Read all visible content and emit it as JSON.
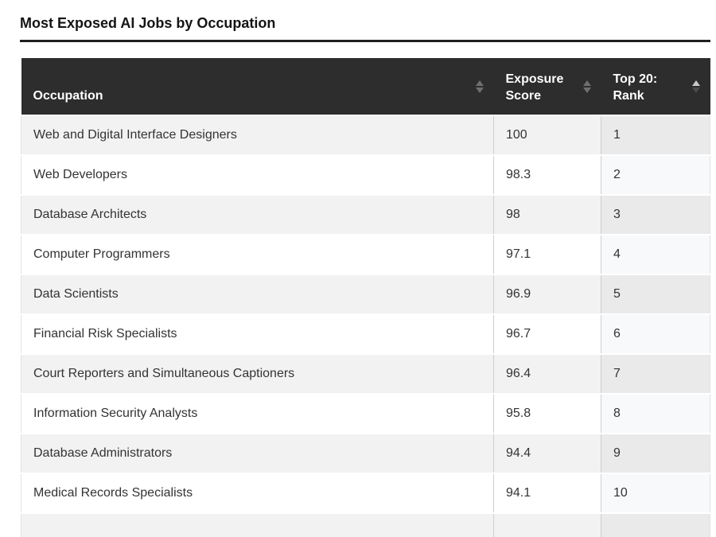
{
  "title": "Most Exposed AI Jobs by Occupation",
  "table": {
    "columns": [
      {
        "id": "occupation",
        "label": "Occupation",
        "sort": "none"
      },
      {
        "id": "score",
        "label": "Exposure Score",
        "sort": "none"
      },
      {
        "id": "rank",
        "label": "Top 20: Rank",
        "sort": "asc"
      }
    ],
    "rows": [
      {
        "occupation": "Web and Digital Interface Designers",
        "score": "100",
        "rank": "1"
      },
      {
        "occupation": "Web Developers",
        "score": "98.3",
        "rank": "2"
      },
      {
        "occupation": "Database Architects",
        "score": "98",
        "rank": "3"
      },
      {
        "occupation": "Computer Programmers",
        "score": "97.1",
        "rank": "4"
      },
      {
        "occupation": "Data Scientists",
        "score": "96.9",
        "rank": "5"
      },
      {
        "occupation": "Financial Risk Specialists",
        "score": "96.7",
        "rank": "6"
      },
      {
        "occupation": "Court Reporters and Simultaneous Captioners",
        "score": "96.4",
        "rank": "7"
      },
      {
        "occupation": "Information Security Analysts",
        "score": "95.8",
        "rank": "8"
      },
      {
        "occupation": "Database Administrators",
        "score": "94.4",
        "rank": "9"
      },
      {
        "occupation": "Medical Records Specialists",
        "score": "94.1",
        "rank": "10"
      }
    ],
    "partial_row_visible": true
  },
  "icons": {
    "sort_ascending": "triangle-up",
    "sort_descending": "triangle-down"
  },
  "colors": {
    "header_bg": "#2d2d2d",
    "header_text": "#ffffff",
    "divider": "#1f1f1f",
    "row_odd_bg": "#f2f2f2",
    "row_even_bg": "#ffffff",
    "sorted_col_odd_bg": "#eaeaea",
    "sorted_col_even_bg": "#f8f9fb",
    "cell_border": "#cfcfcf",
    "sort_arrow_neutral": "#6f6f6f",
    "sort_arrow_active": "#c9c9c9",
    "sort_arrow_inactive": "#4a4a4a"
  }
}
